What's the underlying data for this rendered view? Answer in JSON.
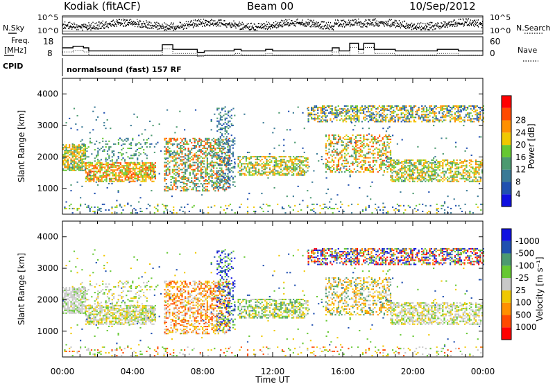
{
  "header": {
    "station": "Kodiak (fitACF)",
    "beam": "Beam 00",
    "date": "10/Sep/2012"
  },
  "left_labels": {
    "nsky": "N.Sky",
    "freq": "Freq.",
    "mhz": "[MHz]",
    "cpid": "CPID"
  },
  "right_labels": {
    "nsearch": "N.Search",
    "nave": "Nave"
  },
  "cpid_text": "normalsound (fast) 157 RF",
  "colors": {
    "power_scale": [
      "#1010e0",
      "#2050b0",
      "#3a7a96",
      "#4c9a70",
      "#66c832",
      "#f0c800",
      "#ff9000",
      "#ff4a00",
      "#ff0000"
    ],
    "velocity_scale": [
      "#ff0000",
      "#ff4a00",
      "#ff9000",
      "#f0c800",
      "#c8c8c8",
      "#66c832",
      "#4c9a70",
      "#2050b0",
      "#1010e0"
    ]
  },
  "chart_data": [
    {
      "type": "line",
      "name": "noise",
      "ylabel_left": "N.Sky",
      "ylabel_right": "N.Search",
      "ytick_labels": [
        "10^5",
        "10^0"
      ],
      "xlim": [
        0,
        24
      ]
    },
    {
      "type": "line",
      "name": "frequency-nave",
      "ylabel_left": "Freq. [MHz]",
      "ylabel_right": "Nave",
      "left_ticks": [
        "18",
        "8"
      ],
      "right_ticks": [
        "60",
        "0"
      ],
      "freq_steps": [
        [
          0.0,
          0.6,
          13
        ],
        [
          0.6,
          1.2,
          14
        ],
        [
          1.2,
          1.5,
          13
        ],
        [
          1.5,
          5.7,
          11
        ],
        [
          5.7,
          6.3,
          15
        ],
        [
          6.3,
          7.7,
          12
        ],
        [
          7.7,
          8.1,
          10
        ],
        [
          8.1,
          9.8,
          11
        ],
        [
          9.8,
          10.2,
          12
        ],
        [
          10.2,
          11.6,
          11
        ],
        [
          11.6,
          12.0,
          12
        ],
        [
          12.0,
          15.4,
          11
        ],
        [
          15.4,
          15.8,
          13
        ],
        [
          15.8,
          16.4,
          11
        ],
        [
          16.4,
          16.9,
          16
        ],
        [
          16.9,
          17.2,
          12
        ],
        [
          17.2,
          17.8,
          16
        ],
        [
          17.8,
          19.0,
          12
        ],
        [
          19.0,
          20.2,
          11
        ],
        [
          20.2,
          21.4,
          11
        ],
        [
          21.4,
          22.6,
          12
        ],
        [
          22.6,
          24.0,
          11
        ]
      ]
    },
    {
      "type": "heatmap",
      "name": "power",
      "xlabel": "",
      "ylabel": "Slant Range [km]",
      "colorbar_label": "Power [dB]",
      "ylim": [
        180,
        4500
      ],
      "xlim": [
        0,
        24
      ],
      "yticks": [
        1000,
        2000,
        3000,
        4000
      ],
      "colorbar_ticks": [
        "4",
        "8",
        "12",
        "16",
        "20",
        "24",
        "28"
      ]
    },
    {
      "type": "heatmap",
      "name": "velocity",
      "xlabel": "Time UT",
      "ylabel": "Slant Range [km]",
      "colorbar_label": "Velocity [m s⁻¹]",
      "ylim": [
        180,
        4500
      ],
      "xlim": [
        0,
        24
      ],
      "yticks": [
        1000,
        2000,
        3000,
        4000
      ],
      "xticks": [
        "00:00",
        "04:00",
        "08:00",
        "12:00",
        "16:00",
        "20:00",
        "00:00"
      ],
      "colorbar_ticks": [
        "-1000",
        "-500",
        "-100",
        "-25",
        "25",
        "100",
        "500",
        "1000"
      ]
    }
  ]
}
